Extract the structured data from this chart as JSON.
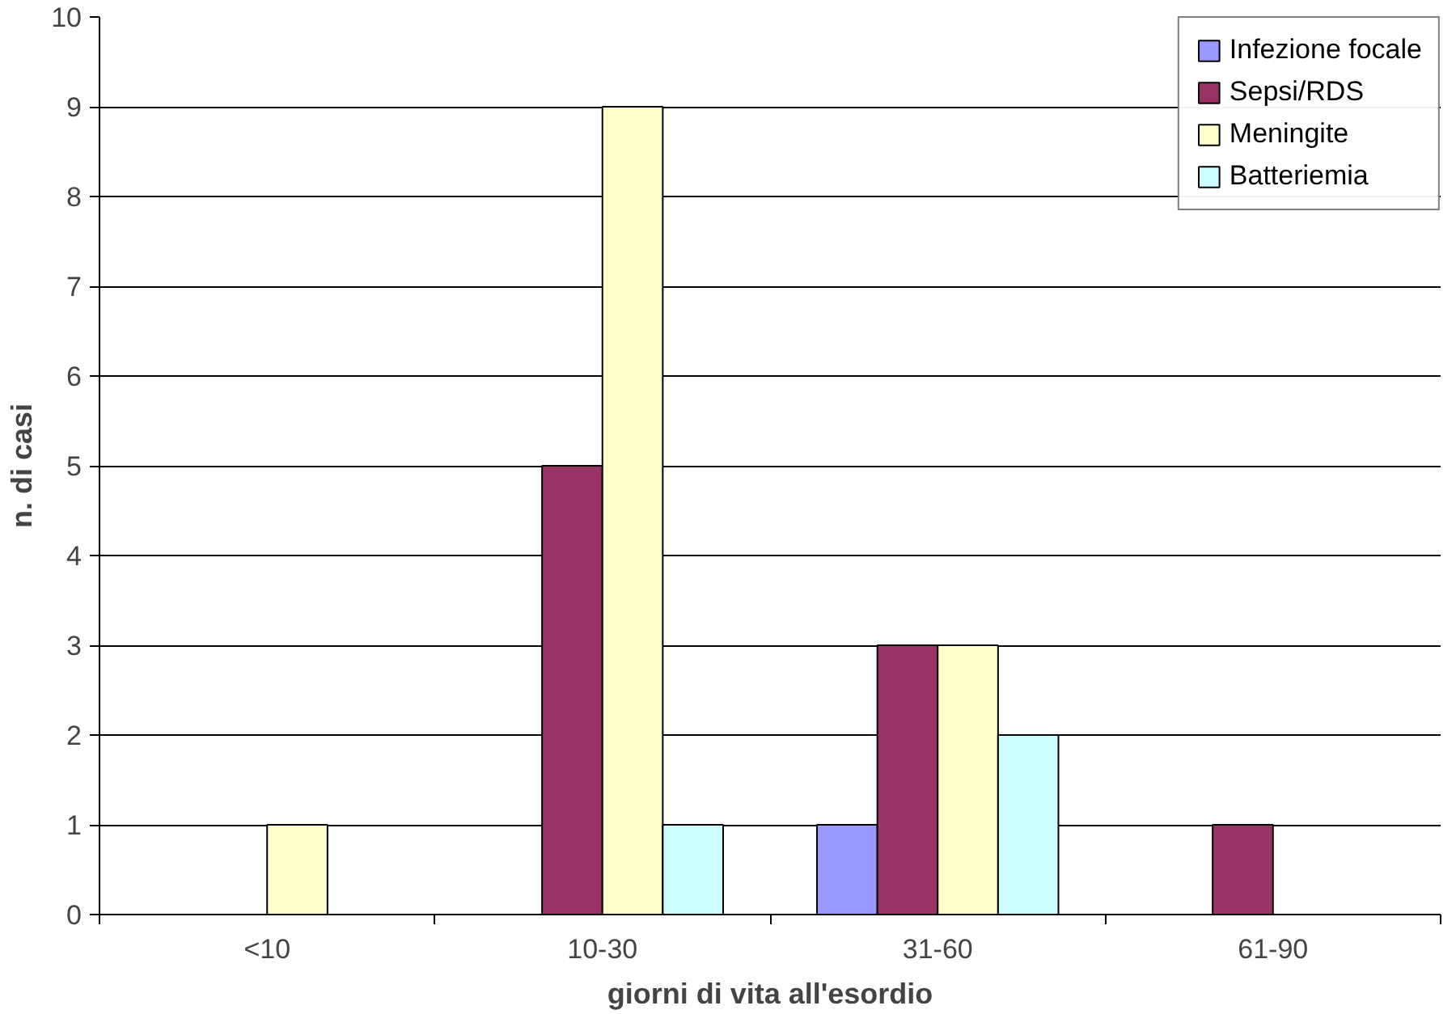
{
  "chart_data": {
    "type": "bar",
    "xlabel": "giorni di vita all'esordio",
    "ylabel": "n. di casi",
    "categories": [
      "<10",
      "10-30",
      "31-60",
      "61-90"
    ],
    "series": [
      {
        "name": "Infezione focale",
        "color": "#9999ff",
        "values": [
          null,
          null,
          1,
          null
        ]
      },
      {
        "name": "Sepsi/RDS",
        "color": "#993366",
        "values": [
          null,
          5,
          3,
          1
        ]
      },
      {
        "name": "Meningite",
        "color": "#ffffcc",
        "values": [
          1,
          9,
          3,
          null
        ]
      },
      {
        "name": "Batteriemia",
        "color": "#ccffff",
        "values": [
          null,
          1,
          2,
          null
        ]
      }
    ],
    "ylim": [
      0,
      10
    ],
    "yticks": [
      0,
      1,
      2,
      3,
      4,
      5,
      6,
      7,
      8,
      9,
      10
    ],
    "grid": "y",
    "legend": "top right"
  }
}
